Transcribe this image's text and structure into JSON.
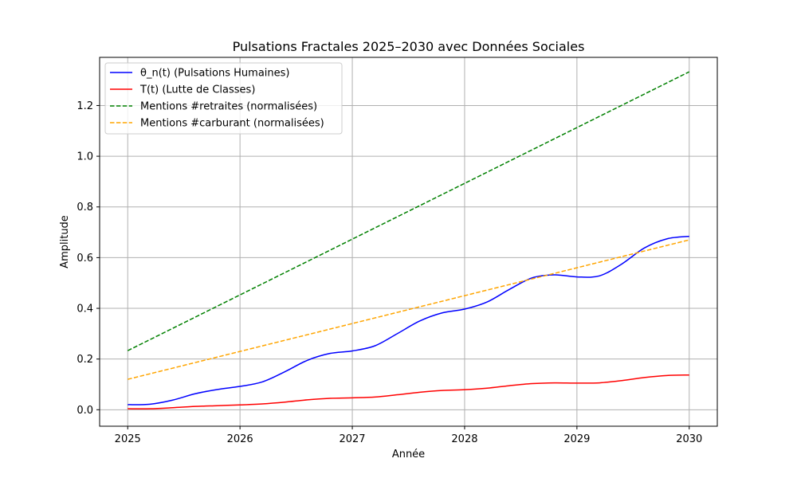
{
  "chart_data": {
    "type": "line",
    "title": "Pulsations Fractales 2025–2030 avec Données Sociales",
    "xlabel": "Année",
    "ylabel": "Amplitude",
    "xlim": [
      2024.75,
      2030.25
    ],
    "ylim": [
      -0.065,
      1.39
    ],
    "x_ticks": [
      "2025",
      "2026",
      "2027",
      "2028",
      "2029",
      "2030"
    ],
    "y_ticks": [
      "0.0",
      "0.2",
      "0.4",
      "0.6",
      "0.8",
      "1.0",
      "1.2"
    ],
    "grid": true,
    "legend_position": "top-left",
    "series": [
      {
        "name": "θ_n(t) (Pulsations Humaines)",
        "color": "#0000ff",
        "style": "solid",
        "x": [
          2025.0,
          2025.2,
          2025.4,
          2025.6,
          2025.8,
          2026.0,
          2026.2,
          2026.4,
          2026.6,
          2026.8,
          2027.0,
          2027.2,
          2027.4,
          2027.6,
          2027.8,
          2028.0,
          2028.2,
          2028.4,
          2028.6,
          2028.8,
          2029.0,
          2029.2,
          2029.4,
          2029.6,
          2029.8,
          2030.0
        ],
        "values": [
          0.02,
          0.022,
          0.038,
          0.063,
          0.08,
          0.092,
          0.11,
          0.15,
          0.195,
          0.222,
          0.232,
          0.252,
          0.3,
          0.35,
          0.382,
          0.397,
          0.425,
          0.475,
          0.52,
          0.532,
          0.524,
          0.528,
          0.575,
          0.638,
          0.674,
          0.684
        ]
      },
      {
        "name": "T(t) (Lutte de Classes)",
        "color": "#ff0000",
        "style": "solid",
        "x": [
          2025.0,
          2025.2,
          2025.4,
          2025.6,
          2025.8,
          2026.0,
          2026.2,
          2026.4,
          2026.6,
          2026.8,
          2027.0,
          2027.2,
          2027.4,
          2027.6,
          2027.8,
          2028.0,
          2028.2,
          2028.4,
          2028.6,
          2028.8,
          2029.0,
          2029.2,
          2029.4,
          2029.6,
          2029.8,
          2030.0
        ],
        "values": [
          0.004,
          0.004,
          0.008,
          0.013,
          0.016,
          0.019,
          0.023,
          0.03,
          0.039,
          0.045,
          0.047,
          0.05,
          0.059,
          0.069,
          0.076,
          0.079,
          0.085,
          0.095,
          0.103,
          0.106,
          0.105,
          0.106,
          0.115,
          0.127,
          0.135,
          0.137
        ]
      },
      {
        "name": "Mentions #retraites (normalisées)",
        "color": "#008000",
        "style": "dashed",
        "x": [
          2025,
          2030
        ],
        "values": [
          0.233,
          1.333
        ]
      },
      {
        "name": "Mentions #carburant (normalisées)",
        "color": "#ffa500",
        "style": "dashed",
        "x": [
          2025,
          2030
        ],
        "values": [
          0.12,
          0.67
        ]
      }
    ]
  }
}
